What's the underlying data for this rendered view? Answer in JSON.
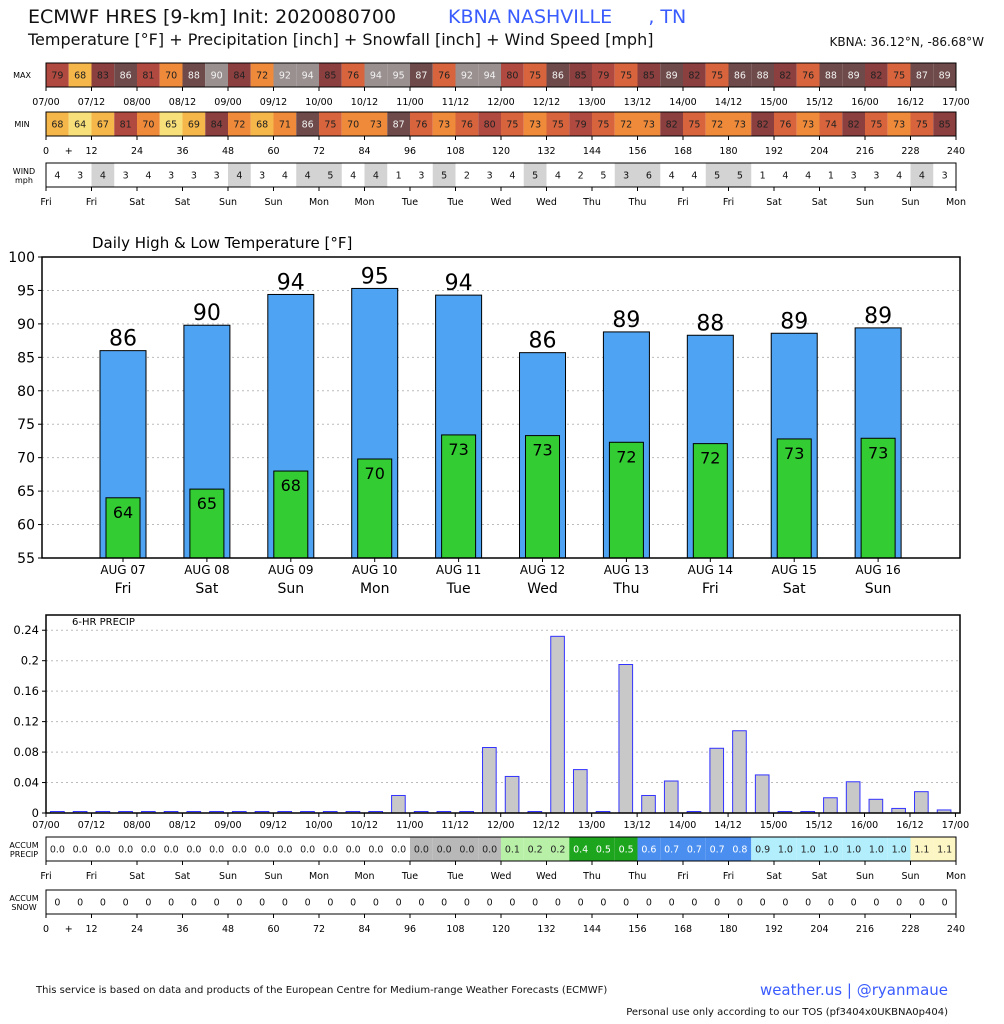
{
  "header": {
    "title": "ECMWF HRES [9-km] Init: 2020080700",
    "location": "KBNA NASHVILLE      , TN",
    "subtitle": "Temperature [°F] + Precipitation [inch] + Snowfall [inch] + Wind Speed [mph]",
    "coords": "KBNA: 36.12°N, -86.68°W"
  },
  "strips": {
    "max_label": "MAX",
    "min_label": "MIN",
    "wind_label_1": "WIND",
    "wind_label_2": "mph",
    "accum_precip_label_1": "ACCUM",
    "accum_precip_label_2": "PRECIP",
    "accum_snow_label_1": "ACCUM",
    "accum_snow_label_2": "SNOW",
    "time_labels": [
      "07/00",
      "07/12",
      "08/00",
      "08/12",
      "09/00",
      "09/12",
      "10/00",
      "10/12",
      "11/00",
      "11/12",
      "12/00",
      "12/12",
      "13/00",
      "13/12",
      "14/00",
      "14/12",
      "15/00",
      "15/12",
      "16/00",
      "16/12",
      "17/00"
    ],
    "hour_labels": [
      "0",
      "+",
      "12",
      "24",
      "36",
      "48",
      "60",
      "72",
      "84",
      "96",
      "108",
      "120",
      "132",
      "144",
      "156",
      "168",
      "180",
      "192",
      "204",
      "216",
      "228",
      "240"
    ],
    "day_labels": [
      "Fri",
      "Fri",
      "Sat",
      "Sat",
      "Sun",
      "Sun",
      "Mon",
      "Mon",
      "Tue",
      "Tue",
      "Wed",
      "Wed",
      "Thu",
      "Thu",
      "Fri",
      "Fri",
      "Sat",
      "Sat",
      "Sun",
      "Sun",
      "Mon"
    ],
    "max_values": [
      79,
      68,
      83,
      86,
      81,
      70,
      88,
      90,
      84,
      72,
      92,
      94,
      85,
      76,
      94,
      95,
      87,
      76,
      92,
      94,
      80,
      75,
      86,
      85,
      79,
      75,
      85,
      89,
      82,
      75,
      86,
      88,
      82,
      76,
      88,
      89,
      82,
      75,
      87,
      89
    ],
    "min_values": [
      68,
      64,
      67,
      81,
      70,
      65,
      69,
      84,
      72,
      68,
      71,
      86,
      75,
      70,
      73,
      87,
      76,
      73,
      76,
      80,
      75,
      73,
      75,
      79,
      75,
      72,
      73,
      82,
      75,
      72,
      73,
      82,
      76,
      73,
      74,
      82,
      75,
      73,
      75,
      85
    ],
    "wind_values": [
      4,
      3,
      4,
      3,
      4,
      3,
      3,
      3,
      4,
      3,
      4,
      4,
      5,
      4,
      4,
      1,
      3,
      5,
      2,
      3,
      4,
      5,
      4,
      2,
      5,
      3,
      6,
      4,
      4,
      5,
      5,
      1,
      4,
      4,
      1,
      3,
      3,
      4,
      4,
      3
    ],
    "accum_precip_values": [
      "0.0",
      "0.0",
      "0.0",
      "0.0",
      "0.0",
      "0.0",
      "0.0",
      "0.0",
      "0.0",
      "0.0",
      "0.0",
      "0.0",
      "0.0",
      "0.0",
      "0.0",
      "0.0",
      "0.0",
      "0.0",
      "0.0",
      "0.0",
      "0.1",
      "0.2",
      "0.2",
      "0.4",
      "0.5",
      "0.5",
      "0.6",
      "0.7",
      "0.7",
      "0.7",
      "0.8",
      "0.9",
      "1.0",
      "1.0",
      "1.0",
      "1.0",
      "1.0",
      "1.0",
      "1.1",
      "1.1"
    ],
    "accum_snow_values": [
      0,
      0,
      0,
      0,
      0,
      0,
      0,
      0,
      0,
      0,
      0,
      0,
      0,
      0,
      0,
      0,
      0,
      0,
      0,
      0,
      0,
      0,
      0,
      0,
      0,
      0,
      0,
      0,
      0,
      0,
      0,
      0,
      0,
      0,
      0,
      0,
      0,
      0,
      0,
      0
    ],
    "colors": {
      "temp_scale": [
        "#f7e07a",
        "#f5b64a",
        "#ee8a3a",
        "#d7643d",
        "#b04a40",
        "#8b3f3f",
        "#6e4a4a",
        "#9a9090"
      ],
      "wind_shade": "#d3d3d3"
    }
  },
  "chart_data": [
    {
      "type": "bar",
      "title": "Daily High & Low Temperature [°F]",
      "categories": [
        "AUG 07",
        "AUG 08",
        "AUG 09",
        "AUG 10",
        "AUG 11",
        "AUG 12",
        "AUG 13",
        "AUG 14",
        "AUG 15",
        "AUG 16"
      ],
      "day_names": [
        "Fri",
        "Sat",
        "Sun",
        "Mon",
        "Tue",
        "Wed",
        "Thu",
        "Fri",
        "Sat",
        "Sun"
      ],
      "series": [
        {
          "values": [
            86,
            89.8,
            94.4,
            95.3,
            94.3,
            85.7,
            88.8,
            88.3,
            88.6,
            89.4
          ],
          "color": "#4ea3f2"
        },
        {
          "values": [
            64,
            65.3,
            68,
            69.8,
            73.4,
            73.3,
            72.3,
            72.1,
            72.8,
            72.9
          ],
          "color": "#33cc33"
        }
      ],
      "high_labels": [
        "86",
        "90",
        "94",
        "95",
        "94",
        "86",
        "89",
        "88",
        "89",
        "89"
      ],
      "low_labels": [
        "64",
        "65",
        "68",
        "70",
        "73",
        "73",
        "72",
        "72",
        "73",
        "73"
      ],
      "ylim": [
        55,
        100
      ],
      "yticks": [
        55,
        60,
        65,
        70,
        75,
        80,
        85,
        90,
        95,
        100
      ],
      "grid": true
    },
    {
      "type": "bar",
      "title": "6-HR PRECIP",
      "x_labels": [
        "07/00",
        "07/12",
        "08/00",
        "08/12",
        "09/00",
        "09/12",
        "10/00",
        "10/12",
        "11/00",
        "11/12",
        "12/00",
        "12/12",
        "13/00",
        "13/12",
        "14/00",
        "14/12",
        "15/00",
        "15/12",
        "16/00",
        "16/12",
        "17/00"
      ],
      "values": [
        0,
        0,
        0,
        0,
        0,
        0,
        0,
        0,
        0,
        0,
        0,
        0,
        0,
        0,
        0,
        0.023,
        0,
        0,
        0,
        0.086,
        0.048,
        0,
        0.232,
        0.057,
        0,
        0.195,
        0.023,
        0.042,
        0,
        0.085,
        0.108,
        0.05,
        0,
        0,
        0.02,
        0.041,
        0.018,
        0.006,
        0.028,
        0.004
      ],
      "ylim": [
        0,
        0.26
      ],
      "yticks": [
        0,
        0.04,
        0.08,
        0.12,
        0.16,
        0.2,
        0.24
      ],
      "bar_color": "#c8c8c8",
      "edge_color": "#3333ff",
      "grid": true
    }
  ],
  "footer": {
    "credit": "This service is based on data and products of the European Centre for Medium-range Weather Forecasts (ECMWF)",
    "brand": "weather.us | @ryanmaue",
    "tos": "Personal use only according to our TOS (pf3404x0UKBNA0p404)"
  }
}
